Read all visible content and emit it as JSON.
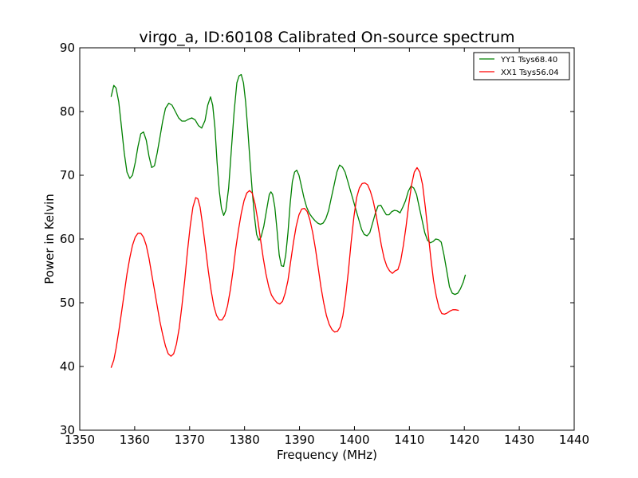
{
  "chart_data": {
    "type": "line",
    "title": "virgo_a, ID:60108 Calibrated On-source spectrum",
    "xlabel": "Frequency (MHz)",
    "ylabel": "Power in Kelvin",
    "xlim": [
      1350,
      1440
    ],
    "ylim": [
      30,
      90
    ],
    "xticks": [
      "1350",
      "1360",
      "1370",
      "1380",
      "1390",
      "1400",
      "1410",
      "1420",
      "1430",
      "1440"
    ],
    "yticks": [
      "30",
      "40",
      "50",
      "60",
      "70",
      "80",
      "90"
    ],
    "grid": false,
    "legend": "top-right",
    "series": [
      {
        "name": "YY1 Tsys68.40",
        "color": "#008000",
        "points": [
          [
            1355.7,
            82.3
          ],
          [
            1356.2,
            84.1
          ],
          [
            1356.6,
            83.7
          ],
          [
            1357.1,
            81.5
          ],
          [
            1357.6,
            77.5
          ],
          [
            1358.1,
            73.5
          ],
          [
            1358.6,
            70.5
          ],
          [
            1359.1,
            69.5
          ],
          [
            1359.6,
            70.0
          ],
          [
            1360.1,
            72.0
          ],
          [
            1360.6,
            74.5
          ],
          [
            1361.1,
            76.5
          ],
          [
            1361.6,
            76.8
          ],
          [
            1362.1,
            75.5
          ],
          [
            1362.6,
            73.0
          ],
          [
            1363.1,
            71.2
          ],
          [
            1363.6,
            71.5
          ],
          [
            1364.1,
            73.5
          ],
          [
            1364.6,
            76.0
          ],
          [
            1365.1,
            78.5
          ],
          [
            1365.6,
            80.5
          ],
          [
            1366.2,
            81.3
          ],
          [
            1366.8,
            81.0
          ],
          [
            1367.4,
            80.0
          ],
          [
            1368.0,
            79.0
          ],
          [
            1368.6,
            78.5
          ],
          [
            1369.2,
            78.5
          ],
          [
            1369.8,
            78.8
          ],
          [
            1370.4,
            79.0
          ],
          [
            1371.0,
            78.7
          ],
          [
            1371.6,
            77.8
          ],
          [
            1372.2,
            77.4
          ],
          [
            1372.8,
            78.6
          ],
          [
            1373.3,
            81.0
          ],
          [
            1373.8,
            82.3
          ],
          [
            1374.2,
            81.0
          ],
          [
            1374.6,
            77.5
          ],
          [
            1375.0,
            72.0
          ],
          [
            1375.4,
            67.5
          ],
          [
            1375.8,
            64.8
          ],
          [
            1376.2,
            63.7
          ],
          [
            1376.6,
            64.5
          ],
          [
            1377.1,
            68.0
          ],
          [
            1377.6,
            74.0
          ],
          [
            1378.1,
            80.0
          ],
          [
            1378.6,
            84.5
          ],
          [
            1379.0,
            85.6
          ],
          [
            1379.4,
            85.8
          ],
          [
            1379.8,
            84.5
          ],
          [
            1380.2,
            81.5
          ],
          [
            1380.6,
            77.0
          ],
          [
            1381.0,
            72.0
          ],
          [
            1381.4,
            67.5
          ],
          [
            1381.8,
            63.5
          ],
          [
            1382.2,
            60.7
          ],
          [
            1382.6,
            59.8
          ],
          [
            1383.0,
            60.3
          ],
          [
            1383.5,
            62.0
          ],
          [
            1384.0,
            64.5
          ],
          [
            1384.5,
            67.0
          ],
          [
            1384.8,
            67.4
          ],
          [
            1385.1,
            67.0
          ],
          [
            1385.5,
            65.0
          ],
          [
            1385.9,
            61.5
          ],
          [
            1386.3,
            57.5
          ],
          [
            1386.7,
            55.8
          ],
          [
            1387.1,
            55.7
          ],
          [
            1387.5,
            57.5
          ],
          [
            1387.9,
            61.0
          ],
          [
            1388.3,
            65.5
          ],
          [
            1388.7,
            69.0
          ],
          [
            1389.1,
            70.5
          ],
          [
            1389.5,
            70.8
          ],
          [
            1389.9,
            70.0
          ],
          [
            1390.3,
            68.5
          ],
          [
            1390.8,
            66.5
          ],
          [
            1391.3,
            65.0
          ],
          [
            1391.8,
            64.0
          ],
          [
            1392.3,
            63.4
          ],
          [
            1392.8,
            62.9
          ],
          [
            1393.3,
            62.5
          ],
          [
            1393.8,
            62.3
          ],
          [
            1394.3,
            62.5
          ],
          [
            1394.8,
            63.2
          ],
          [
            1395.3,
            64.5
          ],
          [
            1395.8,
            66.5
          ],
          [
            1396.3,
            68.5
          ],
          [
            1396.8,
            70.5
          ],
          [
            1397.3,
            71.6
          ],
          [
            1397.8,
            71.3
          ],
          [
            1398.3,
            70.5
          ],
          [
            1398.8,
            69.0
          ],
          [
            1399.3,
            67.5
          ],
          [
            1399.8,
            66.0
          ],
          [
            1400.3,
            64.5
          ],
          [
            1400.8,
            63.0
          ],
          [
            1401.3,
            61.5
          ],
          [
            1401.8,
            60.7
          ],
          [
            1402.3,
            60.5
          ],
          [
            1402.8,
            61.0
          ],
          [
            1403.3,
            62.5
          ],
          [
            1403.8,
            64.0
          ],
          [
            1404.3,
            65.2
          ],
          [
            1404.8,
            65.3
          ],
          [
            1405.3,
            64.5
          ],
          [
            1405.8,
            63.8
          ],
          [
            1406.3,
            63.8
          ],
          [
            1406.8,
            64.3
          ],
          [
            1407.3,
            64.5
          ],
          [
            1407.8,
            64.4
          ],
          [
            1408.3,
            64.1
          ],
          [
            1408.8,
            65.0
          ],
          [
            1409.3,
            66.0
          ],
          [
            1409.8,
            67.5
          ],
          [
            1410.3,
            68.3
          ],
          [
            1410.8,
            68.0
          ],
          [
            1411.3,
            67.0
          ],
          [
            1411.8,
            65.0
          ],
          [
            1412.3,
            63.0
          ],
          [
            1412.8,
            61.0
          ],
          [
            1413.3,
            59.8
          ],
          [
            1413.8,
            59.4
          ],
          [
            1414.3,
            59.6
          ],
          [
            1414.8,
            60.0
          ],
          [
            1415.3,
            59.9
          ],
          [
            1415.8,
            59.5
          ],
          [
            1416.3,
            57.5
          ],
          [
            1416.8,
            55.0
          ],
          [
            1417.3,
            52.5
          ],
          [
            1417.8,
            51.5
          ],
          [
            1418.3,
            51.3
          ],
          [
            1418.8,
            51.5
          ],
          [
            1419.3,
            52.2
          ],
          [
            1419.8,
            53.2
          ],
          [
            1420.2,
            54.4
          ]
        ]
      },
      {
        "name": "XX1 Tsys56.04",
        "color": "#ff0000",
        "points": [
          [
            1355.7,
            39.8
          ],
          [
            1356.2,
            41.0
          ],
          [
            1356.6,
            42.8
          ],
          [
            1357.1,
            45.5
          ],
          [
            1357.6,
            48.5
          ],
          [
            1358.1,
            51.5
          ],
          [
            1358.6,
            54.5
          ],
          [
            1359.1,
            57.0
          ],
          [
            1359.6,
            59.0
          ],
          [
            1360.1,
            60.3
          ],
          [
            1360.6,
            60.9
          ],
          [
            1361.1,
            60.9
          ],
          [
            1361.6,
            60.3
          ],
          [
            1362.1,
            59.0
          ],
          [
            1362.6,
            57.0
          ],
          [
            1363.1,
            54.5
          ],
          [
            1363.6,
            52.0
          ],
          [
            1364.1,
            49.5
          ],
          [
            1364.6,
            47.0
          ],
          [
            1365.1,
            45.0
          ],
          [
            1365.6,
            43.2
          ],
          [
            1366.1,
            42.0
          ],
          [
            1366.6,
            41.6
          ],
          [
            1367.1,
            42.0
          ],
          [
            1367.6,
            43.5
          ],
          [
            1368.1,
            46.0
          ],
          [
            1368.6,
            49.5
          ],
          [
            1369.1,
            53.5
          ],
          [
            1369.6,
            58.0
          ],
          [
            1370.1,
            62.0
          ],
          [
            1370.6,
            65.0
          ],
          [
            1371.1,
            66.5
          ],
          [
            1371.5,
            66.3
          ],
          [
            1371.9,
            65.0
          ],
          [
            1372.4,
            62.0
          ],
          [
            1372.9,
            58.5
          ],
          [
            1373.4,
            55.0
          ],
          [
            1373.9,
            52.0
          ],
          [
            1374.4,
            49.5
          ],
          [
            1374.9,
            48.0
          ],
          [
            1375.4,
            47.3
          ],
          [
            1375.9,
            47.3
          ],
          [
            1376.4,
            48.0
          ],
          [
            1376.9,
            49.5
          ],
          [
            1377.4,
            52.0
          ],
          [
            1377.9,
            55.0
          ],
          [
            1378.4,
            58.5
          ],
          [
            1378.9,
            61.5
          ],
          [
            1379.4,
            64.0
          ],
          [
            1379.9,
            66.0
          ],
          [
            1380.4,
            67.2
          ],
          [
            1380.9,
            67.6
          ],
          [
            1381.4,
            67.2
          ],
          [
            1381.9,
            65.5
          ],
          [
            1382.4,
            63.0
          ],
          [
            1382.9,
            60.0
          ],
          [
            1383.4,
            57.0
          ],
          [
            1383.9,
            54.5
          ],
          [
            1384.4,
            52.5
          ],
          [
            1384.9,
            51.2
          ],
          [
            1385.4,
            50.5
          ],
          [
            1385.9,
            50.0
          ],
          [
            1386.4,
            49.8
          ],
          [
            1386.9,
            50.2
          ],
          [
            1387.4,
            51.5
          ],
          [
            1387.9,
            53.5
          ],
          [
            1388.4,
            56.5
          ],
          [
            1388.9,
            59.5
          ],
          [
            1389.4,
            62.0
          ],
          [
            1389.9,
            63.8
          ],
          [
            1390.4,
            64.7
          ],
          [
            1390.9,
            64.8
          ],
          [
            1391.4,
            64.3
          ],
          [
            1391.9,
            63.0
          ],
          [
            1392.4,
            61.0
          ],
          [
            1392.9,
            58.5
          ],
          [
            1393.4,
            55.5
          ],
          [
            1393.9,
            52.5
          ],
          [
            1394.4,
            50.0
          ],
          [
            1394.9,
            48.0
          ],
          [
            1395.4,
            46.6
          ],
          [
            1395.9,
            45.8
          ],
          [
            1396.4,
            45.4
          ],
          [
            1396.9,
            45.5
          ],
          [
            1397.4,
            46.2
          ],
          [
            1397.9,
            48.0
          ],
          [
            1398.4,
            51.0
          ],
          [
            1398.9,
            55.0
          ],
          [
            1399.4,
            59.5
          ],
          [
            1399.9,
            63.5
          ],
          [
            1400.4,
            66.5
          ],
          [
            1400.9,
            68.0
          ],
          [
            1401.4,
            68.7
          ],
          [
            1401.9,
            68.8
          ],
          [
            1402.4,
            68.5
          ],
          [
            1402.9,
            67.5
          ],
          [
            1403.4,
            66.0
          ],
          [
            1403.9,
            64.0
          ],
          [
            1404.4,
            61.5
          ],
          [
            1404.9,
            59.0
          ],
          [
            1405.4,
            57.0
          ],
          [
            1405.9,
            55.7
          ],
          [
            1406.4,
            55.0
          ],
          [
            1406.9,
            54.6
          ],
          [
            1407.4,
            55.0
          ],
          [
            1407.9,
            55.2
          ],
          [
            1408.4,
            56.5
          ],
          [
            1408.9,
            59.0
          ],
          [
            1409.4,
            62.0
          ],
          [
            1409.9,
            65.5
          ],
          [
            1410.4,
            68.5
          ],
          [
            1410.9,
            70.5
          ],
          [
            1411.4,
            71.2
          ],
          [
            1411.9,
            70.5
          ],
          [
            1412.4,
            68.5
          ],
          [
            1412.9,
            65.0
          ],
          [
            1413.4,
            61.0
          ],
          [
            1413.9,
            57.0
          ],
          [
            1414.4,
            53.5
          ],
          [
            1414.9,
            51.0
          ],
          [
            1415.4,
            49.2
          ],
          [
            1415.9,
            48.3
          ],
          [
            1416.4,
            48.2
          ],
          [
            1416.9,
            48.4
          ],
          [
            1417.4,
            48.7
          ],
          [
            1417.9,
            48.9
          ],
          [
            1418.4,
            48.9
          ],
          [
            1419.0,
            48.8
          ]
        ]
      }
    ]
  }
}
